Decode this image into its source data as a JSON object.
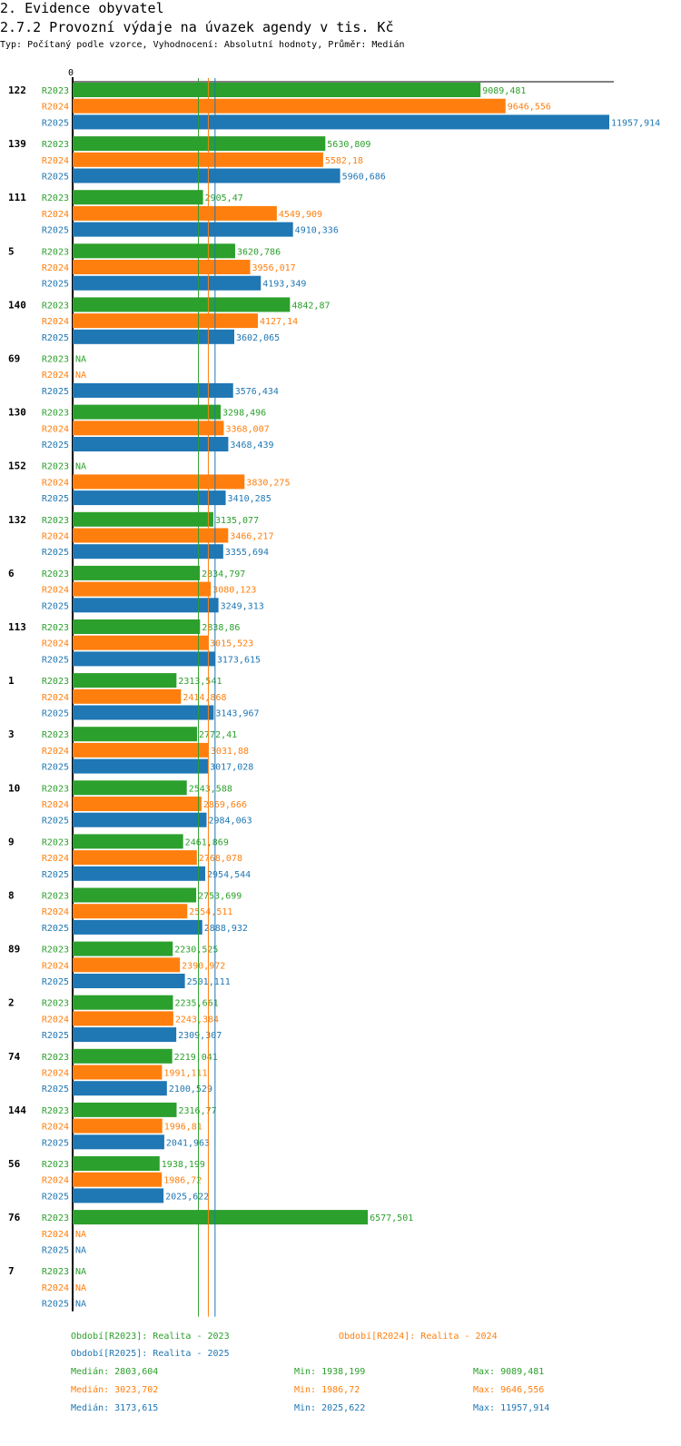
{
  "header": {
    "title": "2. Evidence obyvatel",
    "subtitle": "2.7.2 Provozní výdaje na úvazek agendy v tis. Kč",
    "type_line": "Typ: Počítaný podle vzorce, Vyhodnocení: Absolutní hodnoty, Průměr: Medián"
  },
  "colors": {
    "R2023": "#2ca02c",
    "R2024": "#ff7f0e",
    "R2025": "#1f77b4",
    "axis": "#000000"
  },
  "chart_data": {
    "type": "bar",
    "orientation": "horizontal",
    "title": "2.7.2 Provozní výdaje na úvazek agendy v tis. Kč",
    "axis_zero_label": "0",
    "xlim": [
      0,
      11957.914
    ],
    "series_names": [
      "R2023",
      "R2024",
      "R2025"
    ],
    "na_label": "NA",
    "groups": [
      {
        "label": "122",
        "values": [
          "9089,481",
          "9646,556",
          "11957,914"
        ]
      },
      {
        "label": "139",
        "values": [
          "5630,809",
          "5582,18",
          "5960,686"
        ]
      },
      {
        "label": "111",
        "values": [
          "2905,47",
          "4549,909",
          "4910,336"
        ]
      },
      {
        "label": "5",
        "values": [
          "3620,786",
          "3956,017",
          "4193,349"
        ]
      },
      {
        "label": "140",
        "values": [
          "4842,87",
          "4127,14",
          "3602,065"
        ]
      },
      {
        "label": "69",
        "values": [
          null,
          null,
          "3576,434"
        ]
      },
      {
        "label": "130",
        "values": [
          "3298,496",
          "3368,007",
          "3468,439"
        ]
      },
      {
        "label": "152",
        "values": [
          null,
          "3830,275",
          "3410,285"
        ]
      },
      {
        "label": "132",
        "values": [
          "3135,077",
          "3466,217",
          "3355,694"
        ]
      },
      {
        "label": "6",
        "values": [
          "2834,797",
          "3080,123",
          "3249,313"
        ]
      },
      {
        "label": "113",
        "values": [
          "2838,86",
          "3015,523",
          "3173,615"
        ]
      },
      {
        "label": "1",
        "values": [
          "2313,541",
          "2414,868",
          "3143,967"
        ]
      },
      {
        "label": "3",
        "values": [
          "2772,41",
          "3031,88",
          "3017,028"
        ]
      },
      {
        "label": "10",
        "values": [
          "2543,588",
          "2869,666",
          "2984,063"
        ]
      },
      {
        "label": "9",
        "values": [
          "2461,869",
          "2768,078",
          "2954,544"
        ]
      },
      {
        "label": "8",
        "values": [
          "2753,699",
          "2554,511",
          "2888,932"
        ]
      },
      {
        "label": "89",
        "values": [
          "2230,525",
          "2390,972",
          "2501,111"
        ]
      },
      {
        "label": "2",
        "values": [
          "2235,661",
          "2243,384",
          "2309,307"
        ]
      },
      {
        "label": "74",
        "values": [
          "2219,041",
          "1991,111",
          "2100,529"
        ]
      },
      {
        "label": "144",
        "values": [
          "2316,77",
          "1996,81",
          "2041,963"
        ]
      },
      {
        "label": "56",
        "values": [
          "1938,199",
          "1986,72",
          "2025,622"
        ]
      },
      {
        "label": "76",
        "values": [
          "6577,501",
          null,
          null
        ]
      },
      {
        "label": "7",
        "values": [
          null,
          null,
          null
        ]
      }
    ],
    "medians": [
      2803.604,
      3023.702,
      3173.615
    ]
  },
  "legend": {
    "periods": [
      "Období[R2023]: Realita - 2023",
      "Období[R2024]: Realita - 2024",
      "Období[R2025]: Realita - 2025"
    ],
    "stats": [
      {
        "median": "Medián: 2803,604",
        "min": "Min: 1938,199",
        "max": "Max: 9089,481"
      },
      {
        "median": "Medián: 3023,702",
        "min": "Min: 1986,72",
        "max": "Max: 9646,556"
      },
      {
        "median": "Medián: 3173,615",
        "min": "Min: 2025,622",
        "max": "Max: 11957,914"
      }
    ]
  }
}
